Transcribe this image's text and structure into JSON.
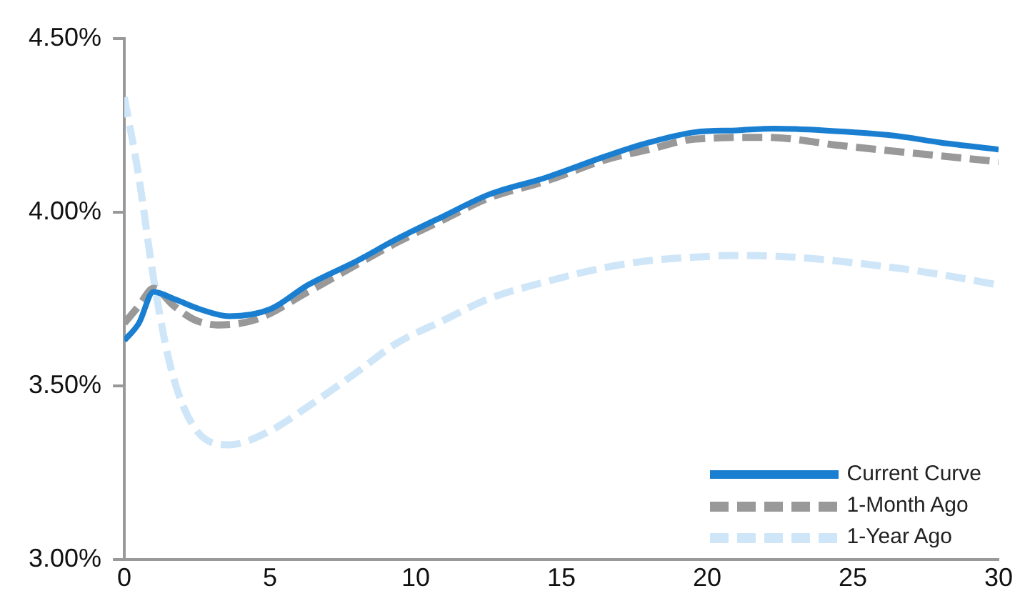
{
  "chart_data": {
    "type": "line",
    "xlim": [
      0,
      30
    ],
    "xticks": [
      0,
      5,
      10,
      15,
      20,
      25,
      30
    ],
    "ylim": [
      3,
      4.5
    ],
    "yticks": [
      {
        "value": 3,
        "label": "3.00%"
      },
      {
        "value": 3.5,
        "label": "3.50%"
      },
      {
        "value": 4,
        "label": "4.00%"
      },
      {
        "value": 4.5,
        "label": "4.50%"
      }
    ],
    "grid": false,
    "legend": "bottom right",
    "marker": "none",
    "series": [
      {
        "name": "Current Curve",
        "color": "#1a7fd0",
        "line_style": "solid",
        "x": [
          0,
          0.5,
          1,
          1.7,
          2.6,
          3.6,
          5,
          6.3,
          8,
          9.3,
          11,
          12.5,
          14.5,
          16.5,
          18,
          19.6,
          21,
          22.3,
          24,
          26.4,
          28,
          30
        ],
        "values": [
          3.63,
          3.68,
          3.77,
          3.75,
          3.72,
          3.7,
          3.72,
          3.79,
          3.86,
          3.92,
          3.99,
          4.05,
          4.1,
          4.16,
          4.2,
          4.23,
          4.235,
          4.24,
          4.235,
          4.22,
          4.2,
          4.18
        ]
      },
      {
        "name": "1-Month Ago",
        "color": "#999999",
        "line_style": "dashed",
        "x": [
          0,
          0.5,
          1,
          1.7,
          2.4,
          3.2,
          4.5,
          6.3,
          8,
          9.3,
          11,
          12.5,
          14.5,
          16.5,
          18,
          19.6,
          22,
          24.7,
          27,
          30
        ],
        "values": [
          3.68,
          3.73,
          3.78,
          3.73,
          3.69,
          3.675,
          3.69,
          3.77,
          3.85,
          3.91,
          3.98,
          4.04,
          4.09,
          4.15,
          4.18,
          4.21,
          4.215,
          4.19,
          4.17,
          4.145
        ]
      },
      {
        "name": "1-Year Ago",
        "color": "#cfe6f8",
        "line_style": "dashed",
        "x": [
          0,
          0.5,
          1,
          1.6,
          2.4,
          3.6,
          5,
          6.3,
          8,
          9.3,
          11,
          12.5,
          14.5,
          16.5,
          18,
          19.6,
          21,
          23,
          26.4,
          28,
          30
        ],
        "values": [
          4.33,
          4.1,
          3.81,
          3.55,
          3.38,
          3.33,
          3.37,
          3.44,
          3.54,
          3.62,
          3.69,
          3.75,
          3.8,
          3.84,
          3.86,
          3.87,
          3.875,
          3.87,
          3.84,
          3.82,
          3.79
        ]
      }
    ]
  }
}
